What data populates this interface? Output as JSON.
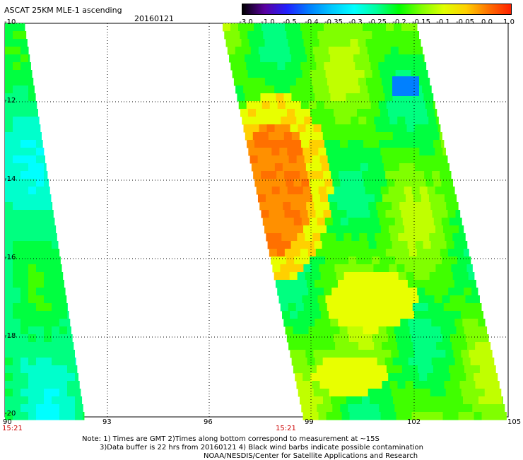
{
  "header": {
    "title": "ASCAT 25KM MLE-1 ascending",
    "date": "20160121"
  },
  "colorbar": {
    "labels": [
      "-3.0",
      "-1.0",
      "-0.5",
      "-0.4",
      "-0.35",
      "-0.3",
      "-0.25",
      "-0.2",
      "-0.15",
      "-0.1",
      "-0.05",
      "0.0",
      "1.0"
    ],
    "colors": [
      "#000000",
      "#5a00a0",
      "#2020ff",
      "#0080ff",
      "#00c8ff",
      "#00ffff",
      "#00ff9a",
      "#00ff00",
      "#80ff00",
      "#e0ff00",
      "#ffd000",
      "#ff7000",
      "#ff2000"
    ]
  },
  "axes": {
    "lon_labels": [
      "90",
      "93",
      "96",
      "99",
      "102",
      "105"
    ],
    "lat_labels": [
      "-10",
      "-12",
      "-14",
      "-16",
      "-18",
      "-20"
    ]
  },
  "times": [
    "15:21",
    "15:21"
  ],
  "notes": [
    "Note: 1) Times are GMT 2)Times along bottom correspond to measurement at ~15S",
    "3)Data buffer is 22 hrs from 20160121 4) Black wind barbs indicate possible contamination",
    "NOAA/NESDIS/Center for Satellite Applications and Research"
  ]
}
